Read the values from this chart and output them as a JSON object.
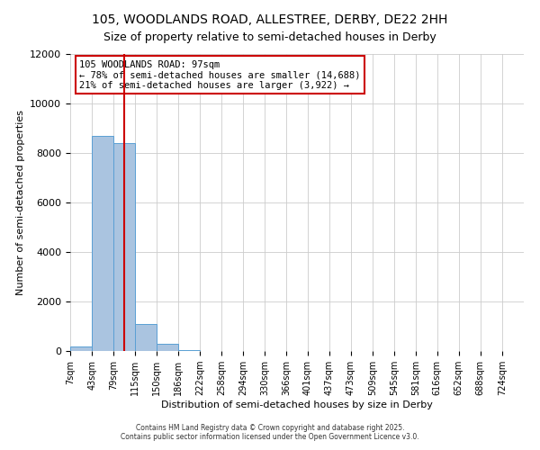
{
  "title": "105, WOODLANDS ROAD, ALLESTREE, DERBY, DE22 2HH",
  "subtitle": "Size of property relative to semi-detached houses in Derby",
  "xlabel": "Distribution of semi-detached houses by size in Derby",
  "ylabel": "Number of semi-detached properties",
  "bin_labels": [
    "7sqm",
    "43sqm",
    "79sqm",
    "115sqm",
    "150sqm",
    "186sqm",
    "222sqm",
    "258sqm",
    "294sqm",
    "330sqm",
    "366sqm",
    "401sqm",
    "437sqm",
    "473sqm",
    "509sqm",
    "545sqm",
    "581sqm",
    "616sqm",
    "652sqm",
    "688sqm",
    "724sqm"
  ],
  "bin_edges": [
    7,
    43,
    79,
    115,
    150,
    186,
    222,
    258,
    294,
    330,
    366,
    401,
    437,
    473,
    509,
    545,
    581,
    616,
    652,
    688,
    724,
    760
  ],
  "bar_heights": [
    200,
    8700,
    8400,
    1100,
    300,
    50,
    0,
    0,
    0,
    0,
    0,
    0,
    0,
    0,
    0,
    0,
    0,
    0,
    0,
    0,
    0
  ],
  "bar_color": "#aac4e0",
  "bar_edge_color": "#5a9fd4",
  "property_size": 97,
  "vline_color": "#cc0000",
  "annotation_line1": "105 WOODLANDS ROAD: 97sqm",
  "annotation_line2": "← 78% of semi-detached houses are smaller (14,688)",
  "annotation_line3": "21% of semi-detached houses are larger (3,922) →",
  "annotation_box_color": "#ffffff",
  "annotation_box_edge": "#cc0000",
  "ylim": [
    0,
    12000
  ],
  "yticks": [
    0,
    2000,
    4000,
    6000,
    8000,
    10000,
    12000
  ],
  "xlim_min": 7,
  "xlim_max": 760,
  "background_color": "#ffffff",
  "grid_color": "#cccccc",
  "title_fontsize": 10,
  "subtitle_fontsize": 9,
  "axis_label_fontsize": 8,
  "tick_fontsize": 7,
  "footer_line1": "Contains HM Land Registry data © Crown copyright and database right 2025.",
  "footer_line2": "Contains public sector information licensed under the Open Government Licence v3.0."
}
